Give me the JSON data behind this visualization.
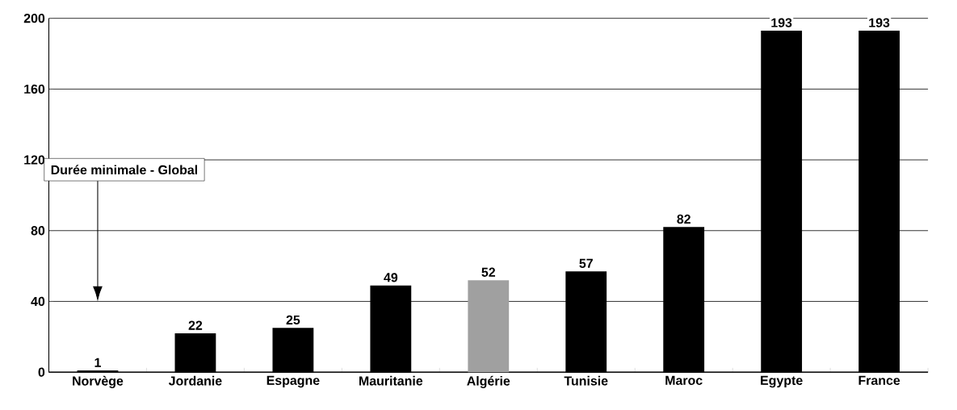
{
  "chart_data": {
    "type": "bar",
    "categories": [
      "Norvège",
      "Jordanie",
      "Espagne",
      "Mauritanie",
      "Algérie",
      "Tunisie",
      "Maroc",
      "Egypte",
      "France"
    ],
    "values": [
      1,
      22,
      25,
      49,
      52,
      57,
      82,
      193,
      193
    ],
    "colors": [
      "#000000",
      "#000000",
      "#000000",
      "#000000",
      "#a0a0a0",
      "#000000",
      "#000000",
      "#000000",
      "#000000"
    ],
    "ylim": [
      0,
      200
    ],
    "yticks": [
      0,
      40,
      80,
      120,
      160,
      200
    ],
    "grid": "y",
    "data_labels": true,
    "annotations": [
      "Durée minimale - Global"
    ]
  }
}
